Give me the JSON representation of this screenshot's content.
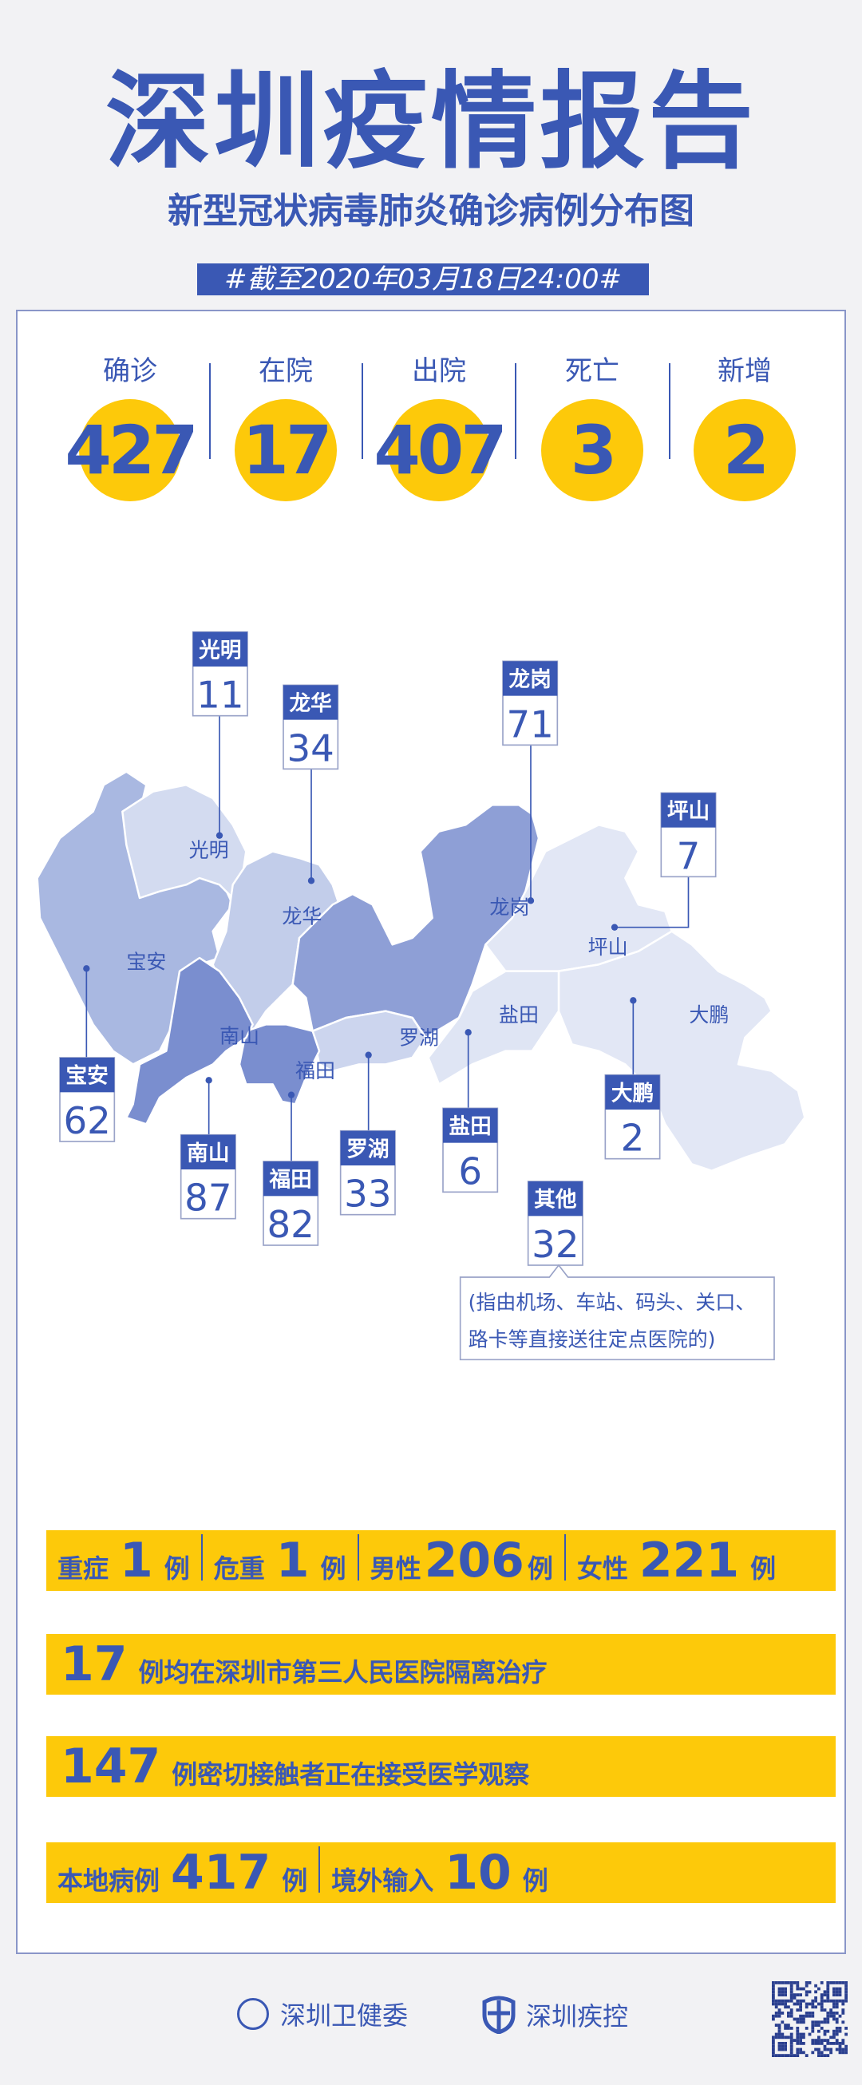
{
  "header": {
    "title": "深圳疫情报告",
    "subtitle": "新型冠状病毒肺炎确诊病例分布图",
    "date": "#截至2020年03月18日24:00#"
  },
  "stats": [
    {
      "label": "确诊",
      "value": "427"
    },
    {
      "label": "在院",
      "value": "17"
    },
    {
      "label": "出院",
      "value": "407"
    },
    {
      "label": "死亡",
      "value": "3"
    },
    {
      "label": "新增",
      "value": "2"
    }
  ],
  "map": {
    "districts": [
      {
        "name": "宝安",
        "count": "62",
        "color": "#a9b8e1"
      },
      {
        "name": "光明",
        "count": "11",
        "color": "#d3dbf0"
      },
      {
        "name": "龙华",
        "count": "34",
        "color": "#c2cdea"
      },
      {
        "name": "龙岗",
        "count": "71",
        "color": "#8e9fd6"
      },
      {
        "name": "坪山",
        "count": "7",
        "color": "#e2e7f5"
      },
      {
        "name": "大鹏",
        "count": "2",
        "color": "#e2e7f5"
      },
      {
        "name": "盐田",
        "count": "6",
        "color": "#dfe5f4"
      },
      {
        "name": "罗湖",
        "count": "33",
        "color": "#ccd5ee"
      },
      {
        "name": "福田",
        "count": "82",
        "color": "#7a8ecf"
      },
      {
        "name": "南山",
        "count": "87",
        "color": "#7a8ecf"
      }
    ],
    "other": {
      "name": "其他",
      "count": "32",
      "note_line1": "(指由机场、车站、码头、关口、",
      "note_line2": "路卡等直接送往定点医院的)"
    }
  },
  "bars": {
    "row1": [
      {
        "label": "重症",
        "value": "1",
        "unit": "例"
      },
      {
        "label": "危重",
        "value": "1",
        "unit": "例"
      },
      {
        "label": "男性",
        "value": "206",
        "unit": "例"
      },
      {
        "label": "女性",
        "value": "221",
        "unit": "例"
      }
    ],
    "row2": {
      "value": "17",
      "text": "例均在深圳市第三人民医院隔离治疗"
    },
    "row3": {
      "value": "147",
      "text": "例密切接触者正在接受医学观察"
    },
    "row4": [
      {
        "label": "本地病例",
        "value": "417",
        "unit": "例"
      },
      {
        "label": "境外输入",
        "value": "10",
        "unit": "例"
      }
    ]
  },
  "footer": {
    "org1": "深圳卫健委",
    "org2": "深圳疾控"
  },
  "colors": {
    "blue": "#3a58b4",
    "yellow": "#fdc90a",
    "border": "#8a96c8"
  }
}
